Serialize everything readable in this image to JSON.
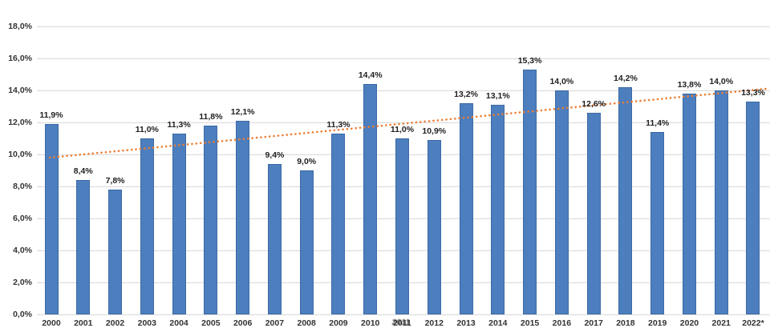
{
  "chart_data": {
    "type": "bar",
    "title": "",
    "xlabel": "",
    "ylabel": "",
    "categories": [
      "2000",
      "2001",
      "2002",
      "2003",
      "2004",
      "2005",
      "2006",
      "2007",
      "2008",
      "2009",
      "2010",
      "2011",
      "2012",
      "2013",
      "2014",
      "2015",
      "2016",
      "2017",
      "2018",
      "2019",
      "2020",
      "2021",
      "2022*"
    ],
    "values": [
      11.9,
      8.4,
      7.8,
      11.0,
      11.3,
      11.8,
      12.1,
      9.4,
      9.0,
      11.3,
      14.4,
      11.0,
      10.9,
      13.2,
      13.1,
      15.3,
      14.0,
      12.6,
      14.2,
      11.4,
      13.8,
      14.0,
      13.3
    ],
    "value_labels": [
      "11,9%",
      "8,4%",
      "7,8%",
      "11,0%",
      "11,3%",
      "11,8%",
      "12,1%",
      "9,4%",
      "9,0%",
      "11,3%",
      "14,4%",
      "11,0%",
      "10,9%",
      "13,2%",
      "13,1%",
      "15,3%",
      "14,0%",
      "12,6%",
      "14,2%",
      "11,4%",
      "13,8%",
      "14,0%",
      "13,3%"
    ],
    "y_ticks": [
      {
        "label": "18,0%",
        "value": 18
      },
      {
        "label": "16,0%",
        "value": 16
      },
      {
        "label": "14,0%",
        "value": 14
      },
      {
        "label": "12,0%",
        "value": 12
      },
      {
        "label": "10,0%",
        "value": 10
      },
      {
        "label": "8,0%",
        "value": 8
      },
      {
        "label": "6,0%",
        "value": 6
      },
      {
        "label": "4,0%",
        "value": 4
      },
      {
        "label": "2,0%",
        "value": 2
      },
      {
        "label": "0,0%",
        "value": 0
      }
    ],
    "ylim": [
      0,
      18
    ],
    "grid": true,
    "legend": "none",
    "smudged_x_label": "2011",
    "colors": {
      "bar_fill": "#4d7ebe",
      "bar_border": "#3c6aa6",
      "gridline": "#d9d9d9",
      "value_label_text": "#1f1f1f",
      "axis_tick_text": "#333333",
      "trendline": "#ed7d31"
    },
    "trendline": {
      "type": "linear",
      "style": "dotted",
      "start_percent": 9.8,
      "end_percent": 14.1
    }
  }
}
